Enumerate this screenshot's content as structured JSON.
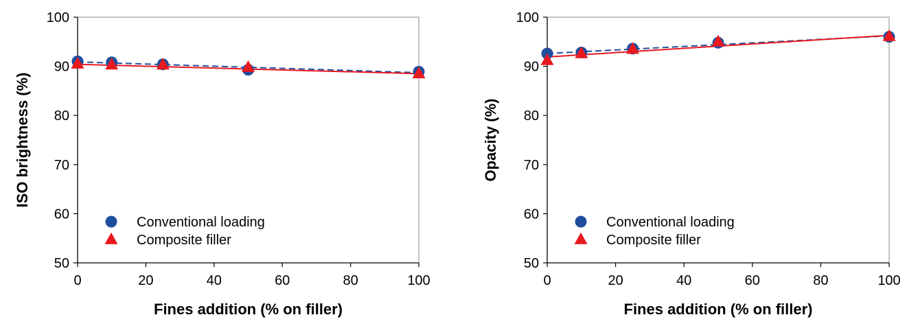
{
  "chart_data": [
    {
      "type": "line",
      "title": "",
      "xlabel": "Fines addition (% on filler)",
      "ylabel": "ISO brightness (%)",
      "xlim": [
        0,
        100
      ],
      "ylim": [
        50,
        100
      ],
      "xticks": [
        "0",
        "20",
        "40",
        "60",
        "80",
        "100"
      ],
      "yticks": [
        "50",
        "60",
        "70",
        "80",
        "90",
        "100"
      ],
      "grid": false,
      "legend_position": "lower-left",
      "series": [
        {
          "name": "Conventional loading",
          "marker": "circle",
          "color": "#1f4e9c",
          "line": "dashed",
          "x": [
            0,
            10,
            25,
            50,
            100
          ],
          "y": [
            91.0,
            90.8,
            90.4,
            89.3,
            88.9
          ],
          "fit": [
            90.9,
            88.7
          ]
        },
        {
          "name": "Composite filler",
          "marker": "triangle",
          "color": "#e8191f",
          "line": "solid",
          "x": [
            0,
            10,
            25,
            50,
            100
          ],
          "y": [
            90.5,
            90.3,
            90.3,
            89.8,
            88.5
          ],
          "fit": [
            90.4,
            88.5
          ]
        }
      ]
    },
    {
      "type": "line",
      "title": "",
      "xlabel": "Fines addition (% on filler)",
      "ylabel": "Opacity (%)",
      "xlim": [
        0,
        100
      ],
      "ylim": [
        50,
        100
      ],
      "xticks": [
        "0",
        "20",
        "40",
        "60",
        "80",
        "100"
      ],
      "yticks": [
        "50",
        "60",
        "70",
        "80",
        "90",
        "100"
      ],
      "grid": false,
      "legend_position": "lower-left",
      "series": [
        {
          "name": "Conventional loading",
          "marker": "circle",
          "color": "#1f4e9c",
          "line": "dashed",
          "x": [
            0,
            10,
            25,
            50,
            100
          ],
          "y": [
            92.6,
            92.8,
            93.6,
            94.8,
            96.0
          ],
          "fit": [
            92.6,
            96.2
          ]
        },
        {
          "name": "Composite filler",
          "marker": "triangle",
          "color": "#e8191f",
          "line": "solid",
          "x": [
            0,
            10,
            25,
            50,
            100
          ],
          "y": [
            91.2,
            92.6,
            93.5,
            95.0,
            96.1
          ],
          "fit": [
            91.9,
            96.3
          ]
        }
      ]
    }
  ]
}
